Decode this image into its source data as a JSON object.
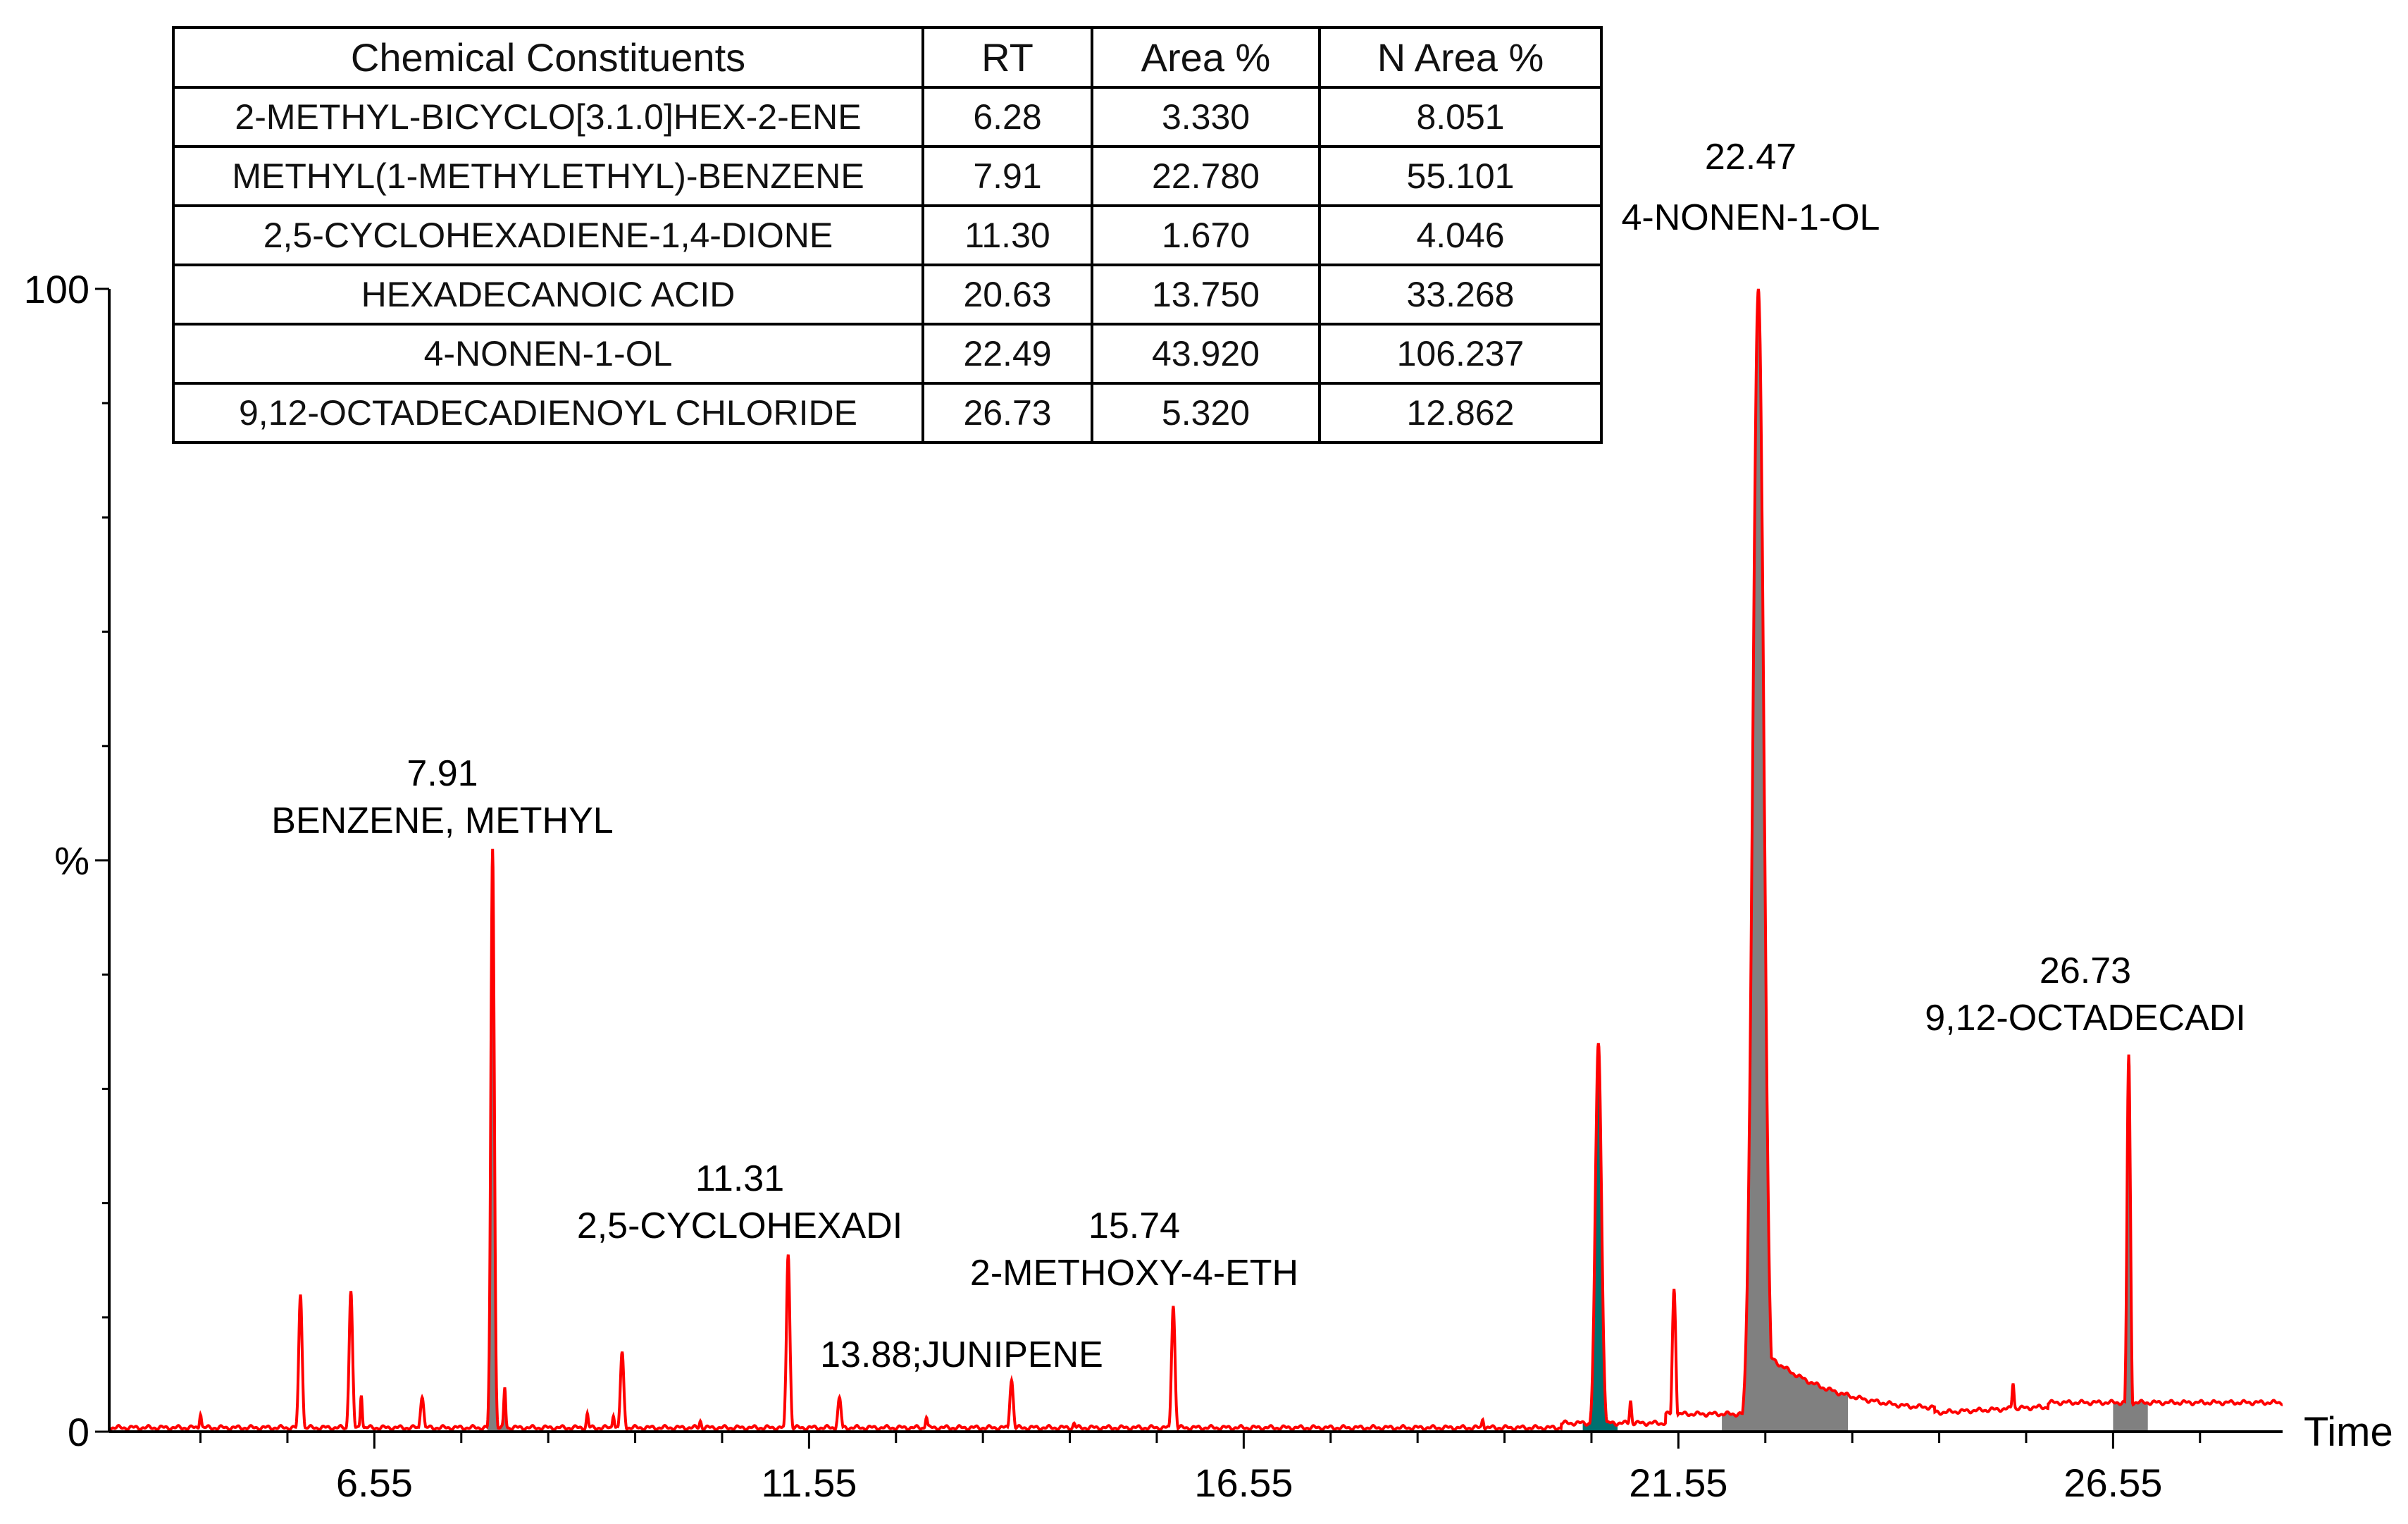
{
  "chart_data": {
    "type": "line",
    "title": "",
    "xlabel": "Time",
    "ylabel": "%",
    "x_ticks": [
      "6.55",
      "11.55",
      "16.55",
      "21.55",
      "26.55"
    ],
    "y_ticks": [
      "0",
      "%",
      "100"
    ],
    "xlim": [
      3.5,
      28.5
    ],
    "ylim": [
      0,
      100
    ],
    "peaks": [
      {
        "rt": 5.7,
        "height": 12,
        "label": ""
      },
      {
        "rt": 6.28,
        "height": 12.3,
        "label": ""
      },
      {
        "rt": 7.1,
        "height": 3,
        "label": ""
      },
      {
        "rt": 7.91,
        "height": 51,
        "label": "BENZENE, METHYL",
        "rt_label": "7.91"
      },
      {
        "rt": 9.4,
        "height": 7,
        "label": ""
      },
      {
        "rt": 11.31,
        "height": 15.5,
        "label": "2,5-CYCLOHEXADI",
        "rt_label": "11.31"
      },
      {
        "rt": 11.9,
        "height": 3,
        "label": ""
      },
      {
        "rt": 13.88,
        "height": 4.5,
        "label": "13.88;JUNIPENE"
      },
      {
        "rt": 15.74,
        "height": 11,
        "label": "2-METHOXY-4-ETH",
        "rt_label": "15.74"
      },
      {
        "rt": 20.63,
        "height": 34,
        "label": ""
      },
      {
        "rt": 21.5,
        "height": 12.5,
        "label": ""
      },
      {
        "rt": 22.47,
        "height": 100,
        "label": "4-NONEN-1-OL",
        "rt_label": "22.47"
      },
      {
        "rt": 25.2,
        "height": 2,
        "label": ""
      },
      {
        "rt": 26.73,
        "height": 33,
        "label": "9,12-OCTADECADI",
        "rt_label": "26.73"
      }
    ],
    "table": {
      "headers": [
        "Chemical Constituents",
        "RT",
        "Area %",
        "N Area %"
      ],
      "rows": [
        [
          "2-METHYL-BICYCLO[3.1.0]HEX-2-ENE",
          "6.28",
          "3.330",
          "8.051"
        ],
        [
          "METHYL(1-METHYLETHYL)-BENZENE",
          "7.91",
          "22.780",
          "55.101"
        ],
        [
          "2,5-CYCLOHEXADIENE-1,4-DIONE",
          "11.30",
          "1.670",
          "4.046"
        ],
        [
          "HEXADECANOIC ACID",
          "20.63",
          "13.750",
          "33.268"
        ],
        [
          "4-NONEN-1-OL",
          "22.49",
          "43.920",
          "106.237"
        ],
        [
          "9,12-OCTADECADIENOYL CHLORIDE",
          "26.73",
          "5.320",
          "12.862"
        ]
      ]
    },
    "colors": {
      "trace": "#ff0000",
      "fill": "#808080",
      "teal": "#007070"
    }
  }
}
